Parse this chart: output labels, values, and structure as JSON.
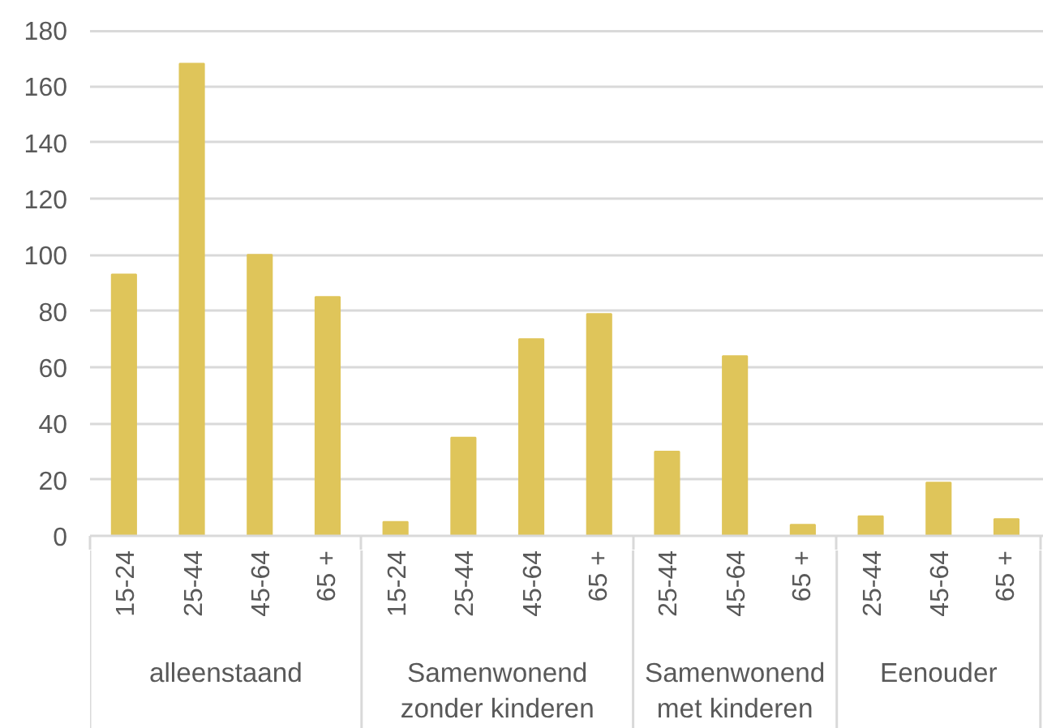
{
  "chart_data": {
    "type": "bar",
    "categories": [
      "15-24",
      "25-44",
      "45-64",
      "65 +",
      "15-24",
      "25-44",
      "45-64",
      "65 +",
      "25-44",
      "45-64",
      "65 +",
      "25-44",
      "45-64",
      "65 +"
    ],
    "values": [
      93,
      168,
      100,
      85,
      5,
      35,
      70,
      79,
      30,
      64,
      4,
      7,
      19,
      6
    ],
    "color": "#dfc55a",
    "ylim": [
      0,
      180
    ],
    "yticks": [
      0,
      20,
      40,
      60,
      80,
      100,
      120,
      140,
      160,
      180
    ],
    "grid": "y",
    "annotations": [
      "alleenstaand",
      "Samenwonend\nzonder kinderen",
      "Samenwonend\nmet kinderen",
      "Eenouder"
    ]
  }
}
